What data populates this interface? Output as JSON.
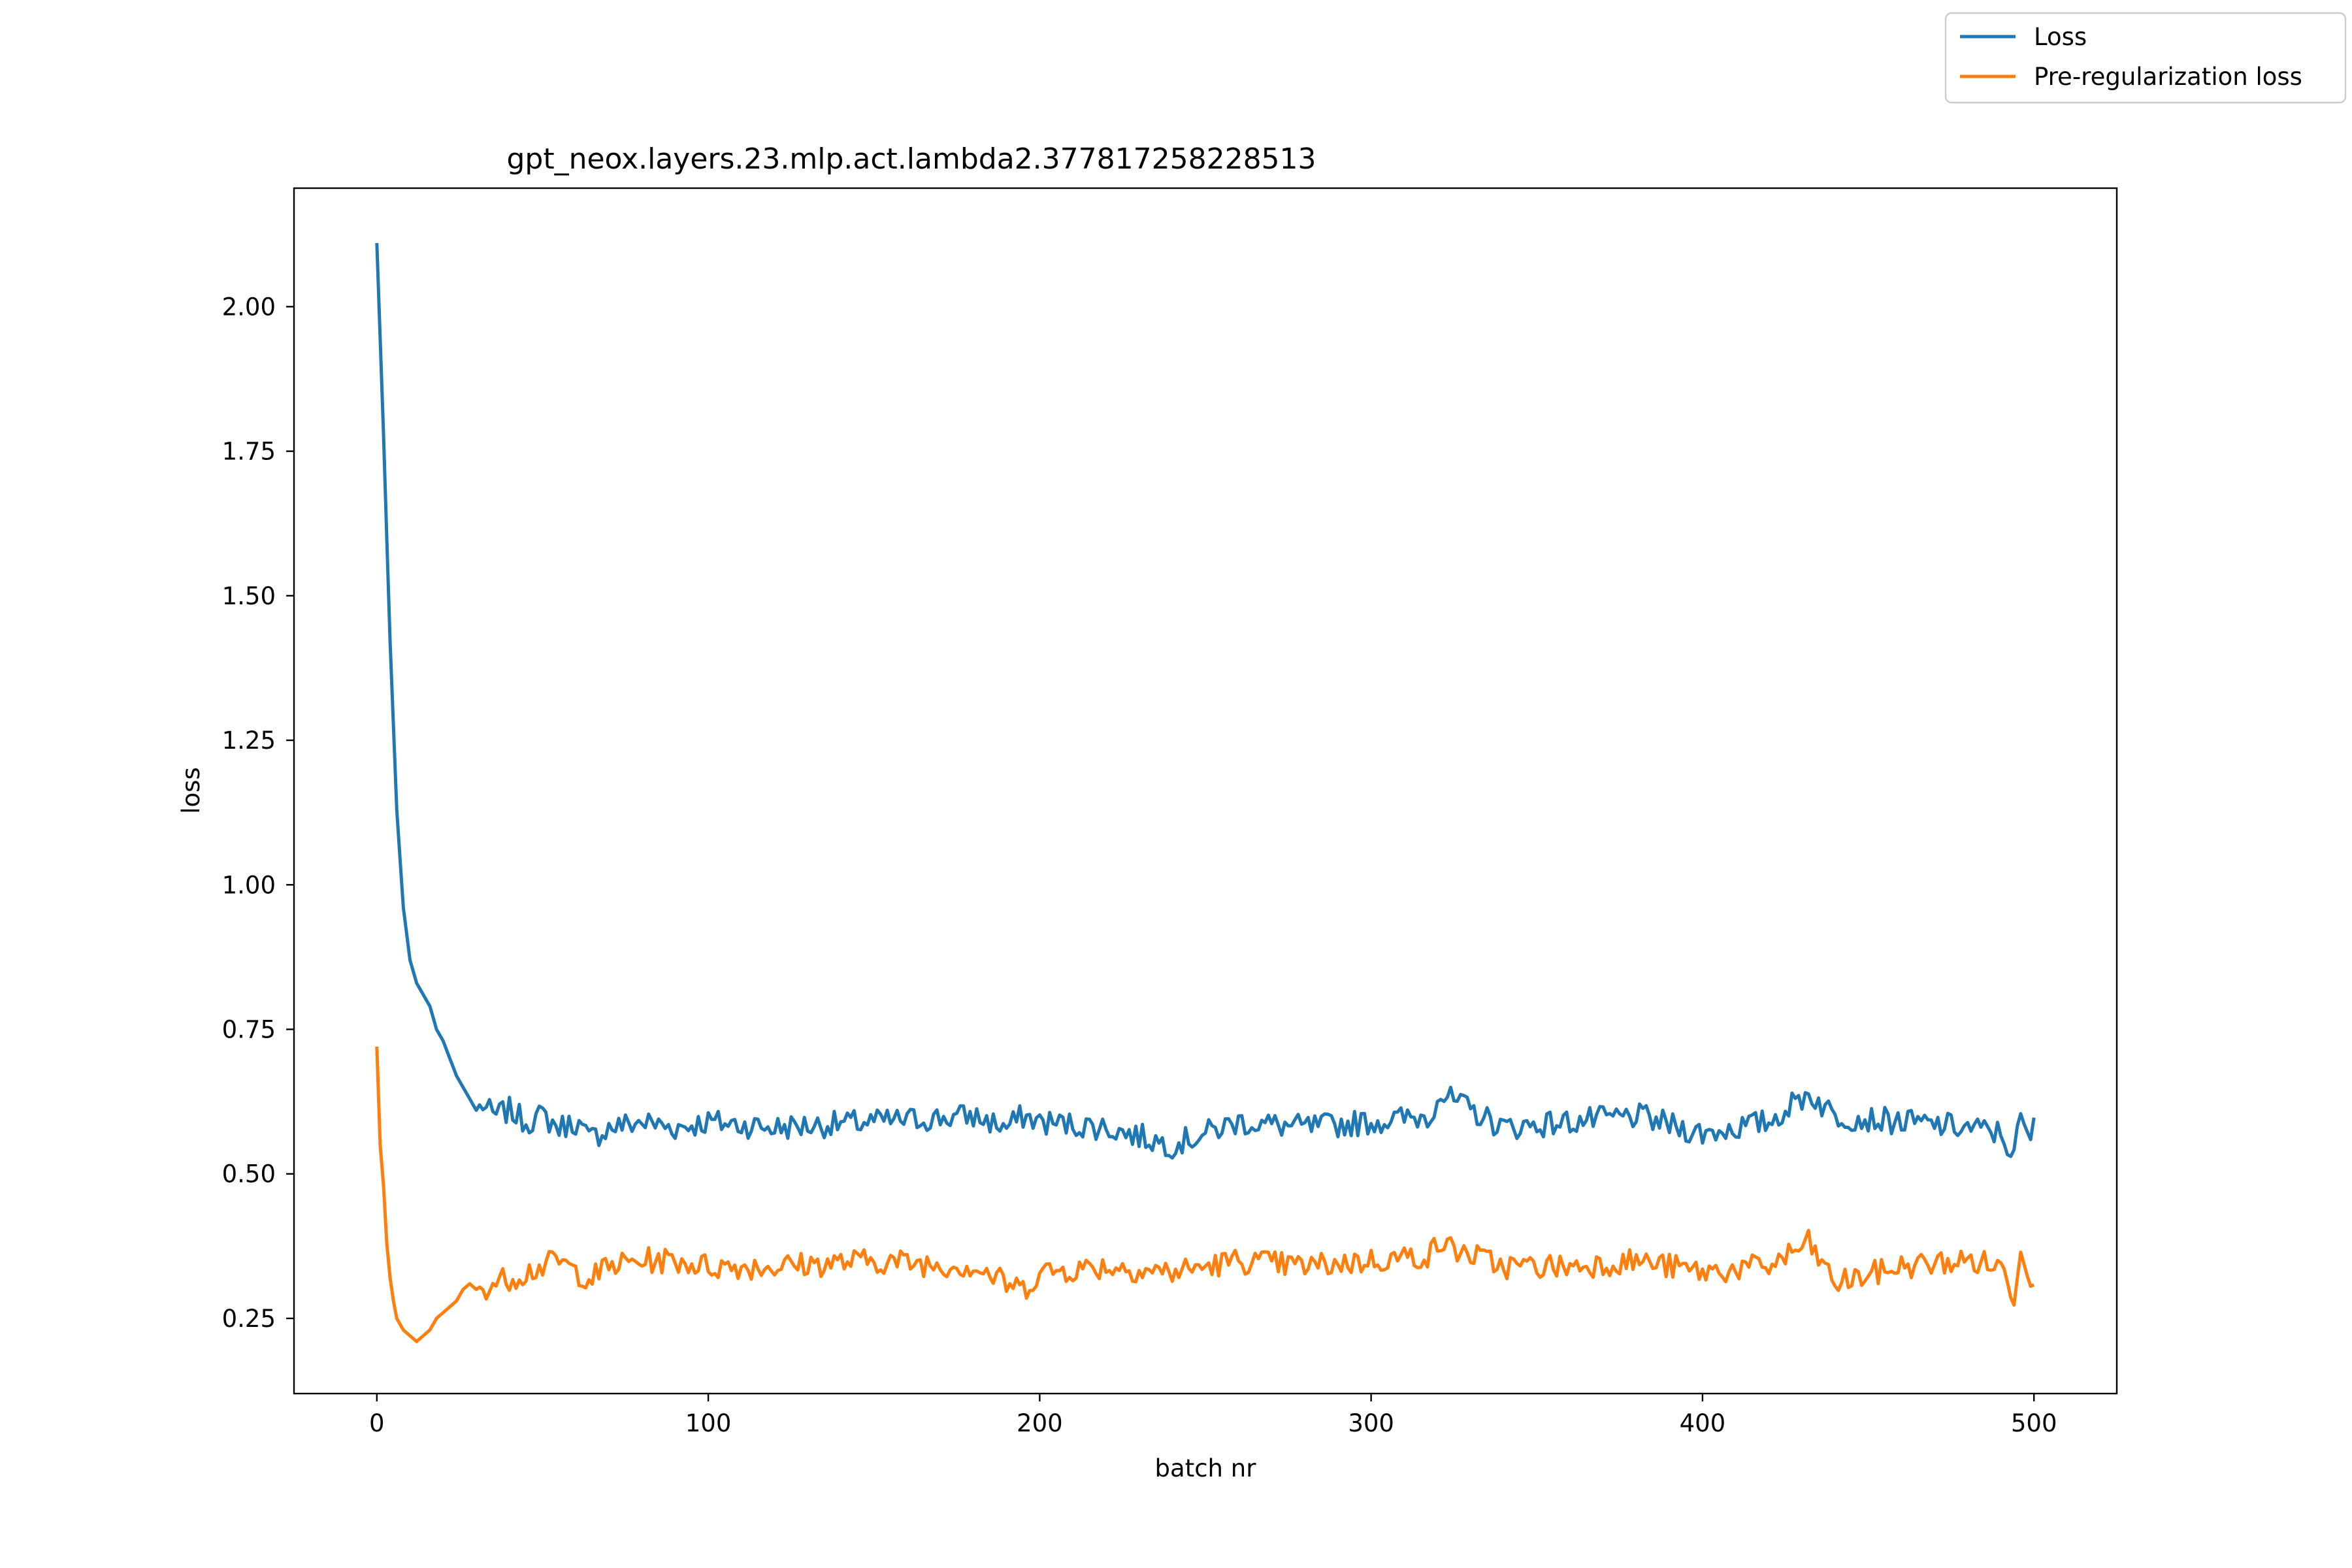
{
  "chart_data": {
    "type": "line",
    "title": "gpt_neox.layers.23.mlp.act.lambda2.377817258228513",
    "xlabel": "batch nr",
    "ylabel": "loss",
    "xlim": [
      -25,
      525
    ],
    "ylim": [
      0.12,
      2.205
    ],
    "xticks": [
      0,
      100,
      200,
      300,
      400,
      500
    ],
    "xtick_labels": [
      "0",
      "100",
      "200",
      "300",
      "400",
      "500"
    ],
    "yticks": [
      0.25,
      0.5,
      0.75,
      1.0,
      1.25,
      1.5,
      1.75,
      2.0
    ],
    "ytick_labels": [
      "0.25",
      "0.50",
      "0.75",
      "1.00",
      "1.25",
      "1.50",
      "1.75",
      "2.00"
    ],
    "grid": false,
    "legend_position": "top-right (figure)",
    "series": [
      {
        "name": "Loss",
        "color": "#1f77b4",
        "x": [
          0,
          2,
          4,
          6,
          8,
          10,
          12,
          14,
          16,
          18,
          20,
          22,
          24,
          26,
          28,
          30,
          32,
          35,
          40,
          45,
          50,
          55,
          60,
          64,
          70,
          80,
          90,
          100,
          120,
          150,
          180,
          190,
          195,
          200,
          220,
          240,
          260,
          280,
          300,
          318,
          320,
          340,
          360,
          380,
          400,
          420,
          432,
          440,
          460,
          480,
          490,
          494,
          496,
          498,
          500
        ],
        "y": [
          2.11,
          1.78,
          1.42,
          1.13,
          0.96,
          0.87,
          0.83,
          0.81,
          0.79,
          0.75,
          0.73,
          0.7,
          0.67,
          0.65,
          0.63,
          0.61,
          0.62,
          0.6,
          0.61,
          0.59,
          0.6,
          0.58,
          0.59,
          0.56,
          0.58,
          0.59,
          0.58,
          0.59,
          0.58,
          0.59,
          0.6,
          0.58,
          0.6,
          0.59,
          0.58,
          0.55,
          0.59,
          0.58,
          0.59,
          0.6,
          0.64,
          0.58,
          0.59,
          0.6,
          0.57,
          0.59,
          0.64,
          0.6,
          0.59,
          0.58,
          0.57,
          0.53,
          0.6,
          0.56,
          0.58
        ]
      },
      {
        "name": "Pre-regularization loss",
        "color": "#ff7f0e",
        "x": [
          0,
          1,
          2,
          3,
          4,
          5,
          6,
          8,
          10,
          12,
          14,
          16,
          18,
          20,
          22,
          24,
          26,
          28,
          30,
          35,
          40,
          45,
          50,
          55,
          60,
          65,
          70,
          80,
          90,
          100,
          120,
          150,
          180,
          190,
          195,
          200,
          220,
          240,
          260,
          280,
          300,
          318,
          320,
          340,
          360,
          380,
          400,
          420,
          432,
          440,
          460,
          480,
          490,
          494,
          496,
          498,
          500
        ],
        "y": [
          0.72,
          0.55,
          0.48,
          0.38,
          0.32,
          0.28,
          0.25,
          0.23,
          0.22,
          0.21,
          0.22,
          0.23,
          0.25,
          0.26,
          0.27,
          0.28,
          0.3,
          0.31,
          0.3,
          0.31,
          0.32,
          0.33,
          0.34,
          0.35,
          0.33,
          0.32,
          0.34,
          0.35,
          0.35,
          0.34,
          0.34,
          0.35,
          0.34,
          0.31,
          0.3,
          0.33,
          0.34,
          0.33,
          0.35,
          0.34,
          0.35,
          0.36,
          0.38,
          0.34,
          0.34,
          0.35,
          0.33,
          0.34,
          0.38,
          0.31,
          0.34,
          0.35,
          0.34,
          0.29,
          0.38,
          0.32,
          0.33
        ]
      }
    ]
  }
}
